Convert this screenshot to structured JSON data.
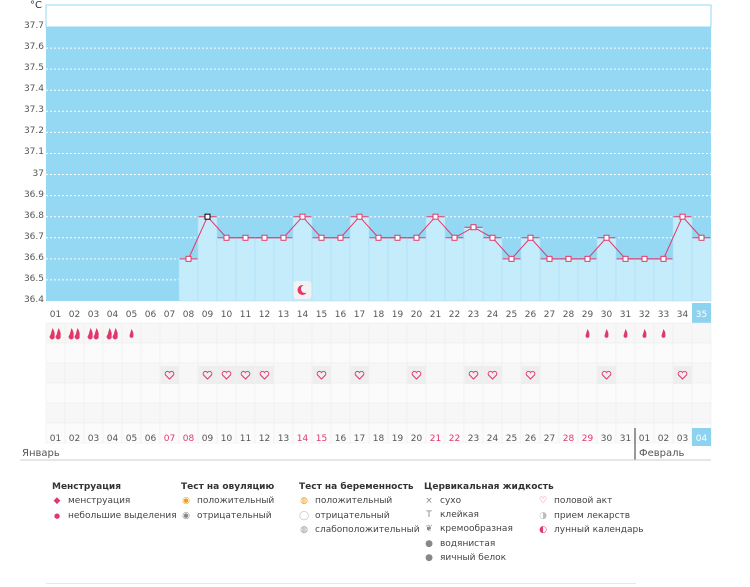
{
  "chart_data": {
    "type": "line",
    "ylabel": "°C",
    "ylim": [
      36.4,
      37.8
    ],
    "yticks": [
      "37.7",
      "37.6",
      "37.5",
      "37.4",
      "37.3",
      "37.2",
      "37.1",
      "37",
      "36.9",
      "36.8",
      "36.7",
      "36.6",
      "36.5",
      "36.4"
    ],
    "days": [
      "01",
      "02",
      "03",
      "04",
      "05",
      "06",
      "07",
      "08",
      "09",
      "10",
      "11",
      "12",
      "13",
      "14",
      "15",
      "16",
      "17",
      "18",
      "19",
      "20",
      "21",
      "22",
      "23",
      "24",
      "25",
      "26",
      "27",
      "28",
      "29",
      "30",
      "31",
      "32",
      "33",
      "34",
      "35"
    ],
    "current_day": "35",
    "temperatures": [
      null,
      null,
      null,
      null,
      null,
      null,
      null,
      36.6,
      36.8,
      36.7,
      36.7,
      36.7,
      36.7,
      36.8,
      36.7,
      36.7,
      36.8,
      36.7,
      36.7,
      36.7,
      36.8,
      36.7,
      36.75,
      36.7,
      36.6,
      36.7,
      36.6,
      36.6,
      36.6,
      36.7,
      36.6,
      36.6,
      36.6,
      36.8,
      36.7
    ]
  },
  "rows": {
    "menstruation": [
      "heavy",
      "heavy",
      "heavy",
      "heavy",
      "light",
      null,
      null,
      null,
      null,
      null,
      null,
      null,
      null,
      null,
      null,
      null,
      null,
      null,
      null,
      null,
      null,
      null,
      null,
      null,
      null,
      null,
      null,
      null,
      "light",
      "light",
      "light",
      "light",
      "light",
      null,
      null
    ],
    "intercourse": [
      0,
      0,
      0,
      0,
      0,
      0,
      1,
      0,
      1,
      1,
      1,
      1,
      0,
      0,
      1,
      0,
      1,
      0,
      0,
      1,
      0,
      0,
      1,
      1,
      0,
      1,
      0,
      0,
      0,
      1,
      0,
      0,
      0,
      1,
      0
    ],
    "lunar_day_index": 13
  },
  "dates": {
    "labels": [
      "01",
      "02",
      "03",
      "04",
      "05",
      "06",
      "07",
      "08",
      "09",
      "10",
      "11",
      "12",
      "13",
      "14",
      "15",
      "16",
      "17",
      "18",
      "19",
      "20",
      "21",
      "22",
      "23",
      "24",
      "25",
      "26",
      "27",
      "28",
      "29",
      "30",
      "31",
      "01",
      "02",
      "03",
      "04"
    ],
    "highlight": [
      false,
      false,
      false,
      false,
      false,
      false,
      true,
      true,
      false,
      false,
      false,
      false,
      false,
      true,
      true,
      false,
      false,
      false,
      false,
      false,
      true,
      true,
      false,
      false,
      false,
      false,
      false,
      true,
      true,
      false,
      false,
      false,
      false,
      false,
      false
    ],
    "month_jan": "Январь",
    "month_feb": "Февраль"
  },
  "legend": {
    "menstruation": {
      "title": "Менструация",
      "items": [
        "менструация",
        "небольшие выделения"
      ]
    },
    "ovulation": {
      "title": "Тест на овуляцию",
      "items": [
        "положительный",
        "отрицательный"
      ]
    },
    "pregnancy": {
      "title": "Тест на беременность",
      "items": [
        "положительный",
        "отрицательный",
        "слабоположительный"
      ]
    },
    "cervical": {
      "title": "Цервикальная жидкость",
      "items": [
        "сухо",
        "клейкая",
        "кремообразная",
        "водянистая",
        "яичный белок"
      ]
    },
    "other": {
      "items": [
        "половой акт",
        "прием лекарств",
        "лунный календарь"
      ]
    }
  },
  "colors": {
    "bg_above": "#94d8f3",
    "bg_below": "#dcf3fc",
    "bar": "#c5ecfb",
    "line": "#e0386a",
    "accent": "#e0386a",
    "current": "#8dd3f0"
  }
}
